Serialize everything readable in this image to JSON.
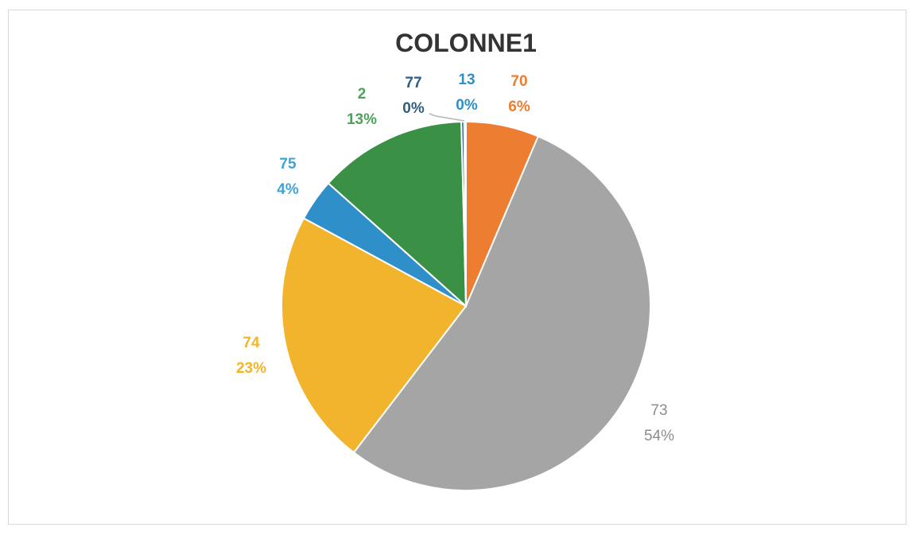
{
  "chart_data": {
    "type": "pie",
    "title": "COLONNE1",
    "slices": [
      {
        "name": "70",
        "percent_label": "6%",
        "value": 6.4,
        "color": "#ED7D31"
      },
      {
        "name": "73",
        "percent_label": "54%",
        "value": 54.0,
        "color": "#A5A5A5"
      },
      {
        "name": "74",
        "percent_label": "23%",
        "value": 22.5,
        "color": "#F2B42C"
      },
      {
        "name": "75",
        "percent_label": "4%",
        "value": 3.7,
        "color": "#2E8FC9"
      },
      {
        "name": "2",
        "percent_label": "13%",
        "value": 13.0,
        "color": "#3A9145"
      },
      {
        "name": "77",
        "percent_label": "0%",
        "value": 0.25,
        "color": "#2E5F80"
      },
      {
        "name": "13",
        "percent_label": "0%",
        "value": 0.15,
        "color": "#2E8FC9"
      }
    ],
    "label_colors": {
      "70": "#ED7D31",
      "73": "#8C8C8C",
      "74": "#F2B42C",
      "75": "#3FA3D8",
      "2": "#4CA35A",
      "77": "#2E5F80",
      "13": "#2E8FC9"
    }
  }
}
